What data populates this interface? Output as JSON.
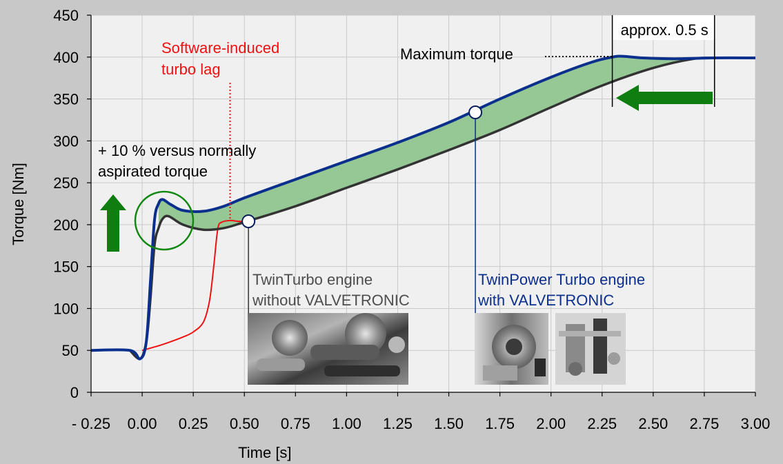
{
  "chart_data": {
    "type": "line",
    "title": "",
    "xlabel": "Time [s]",
    "ylabel": "Torque [Nm]",
    "xlim": [
      -0.25,
      3.0
    ],
    "ylim": [
      0,
      450
    ],
    "grid": true,
    "x_ticks": [
      -0.25,
      0.0,
      0.25,
      0.5,
      0.75,
      1.0,
      1.25,
      1.5,
      1.75,
      2.0,
      2.25,
      2.5,
      2.75,
      3.0
    ],
    "x_tick_labels": [
      "- 0.25",
      "0.00",
      "0.25",
      "0.50",
      "0.75",
      "1.00",
      "1.25",
      "1.50",
      "1.75",
      "2.00",
      "2.25",
      "2.50",
      "2.75",
      "3.00"
    ],
    "y_ticks": [
      0,
      50,
      100,
      150,
      200,
      250,
      300,
      350,
      400,
      450
    ],
    "y_tick_labels": [
      "0",
      "50",
      "100",
      "150",
      "200",
      "250",
      "300",
      "350",
      "400",
      "450"
    ],
    "series": [
      {
        "name": "TwinPower Turbo engine with VALVETRONIC",
        "color": "#0a2f8c",
        "points": [
          [
            -0.25,
            50
          ],
          [
            -0.06,
            50
          ],
          [
            -0.01,
            40
          ],
          [
            0.02,
            60
          ],
          [
            0.04,
            130
          ],
          [
            0.06,
            205
          ],
          [
            0.08,
            225
          ],
          [
            0.1,
            230
          ],
          [
            0.14,
            224
          ],
          [
            0.2,
            217
          ],
          [
            0.3,
            216
          ],
          [
            0.4,
            222
          ],
          [
            0.5,
            232
          ],
          [
            0.75,
            254
          ],
          [
            1.0,
            276
          ],
          [
            1.25,
            298
          ],
          [
            1.5,
            322
          ],
          [
            1.75,
            350
          ],
          [
            2.0,
            376
          ],
          [
            2.2,
            394
          ],
          [
            2.3,
            400
          ],
          [
            2.35,
            401
          ],
          [
            2.45,
            399
          ],
          [
            2.6,
            398
          ],
          [
            2.8,
            399
          ],
          [
            3.0,
            399
          ]
        ]
      },
      {
        "name": "TwinTurbo engine without VALVETRONIC",
        "color": "#333333",
        "points": [
          [
            -0.06,
            50
          ],
          [
            -0.01,
            40
          ],
          [
            0.02,
            60
          ],
          [
            0.04,
            110
          ],
          [
            0.06,
            175
          ],
          [
            0.08,
            196
          ],
          [
            0.1,
            207
          ],
          [
            0.13,
            210
          ],
          [
            0.2,
            200
          ],
          [
            0.3,
            194
          ],
          [
            0.4,
            196
          ],
          [
            0.5,
            203
          ],
          [
            0.75,
            222
          ],
          [
            1.0,
            244
          ],
          [
            1.25,
            266
          ],
          [
            1.5,
            289
          ],
          [
            1.75,
            313
          ],
          [
            2.0,
            340
          ],
          [
            2.25,
            366
          ],
          [
            2.5,
            387
          ],
          [
            2.7,
            398
          ],
          [
            2.8,
            399
          ]
        ]
      },
      {
        "name": "Software-induced turbo lag",
        "color": "#ee1111",
        "points": [
          [
            0.0,
            50
          ],
          [
            0.1,
            57
          ],
          [
            0.2,
            66
          ],
          [
            0.25,
            72
          ],
          [
            0.3,
            84
          ],
          [
            0.33,
            110
          ],
          [
            0.35,
            150
          ],
          [
            0.37,
            195
          ],
          [
            0.39,
            203
          ],
          [
            0.43,
            205
          ],
          [
            0.47,
            204
          ],
          [
            0.52,
            204
          ]
        ]
      }
    ],
    "markers": [
      {
        "x": 0.52,
        "y": 204
      },
      {
        "x": 1.63,
        "y": 334
      }
    ],
    "annotations": {
      "turbo_lag": [
        "Software-induced",
        "turbo lag"
      ],
      "max_torque": "Maximum torque",
      "approx": "approx. 0.5 s",
      "versus": [
        "+ 10 % versus normally",
        "aspirated torque"
      ],
      "twinturbo": [
        "TwinTurbo engine",
        "without VALVETRONIC"
      ],
      "twinpower": [
        "TwinPower Turbo engine",
        "with VALVETRONIC"
      ]
    },
    "colors": {
      "background": "#c8c8c8",
      "plot_area": "#f0f0f0",
      "band": "#96c896",
      "arrow": "#107d10",
      "label_red": "#ee1111",
      "label_blue": "#0a2f8c",
      "label_gray": "#4d4d4d"
    }
  }
}
